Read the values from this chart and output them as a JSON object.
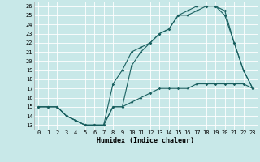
{
  "xlabel": "Humidex (Indice chaleur)",
  "bg_color": "#c8e8e8",
  "grid_color": "#ffffff",
  "line_color": "#1a6060",
  "xlim": [
    -0.5,
    23.5
  ],
  "ylim": [
    12.5,
    26.5
  ],
  "xticks": [
    0,
    1,
    2,
    3,
    4,
    5,
    6,
    7,
    8,
    9,
    10,
    11,
    12,
    13,
    14,
    15,
    16,
    17,
    18,
    19,
    20,
    21,
    22,
    23
  ],
  "yticks": [
    13,
    14,
    15,
    16,
    17,
    18,
    19,
    20,
    21,
    22,
    23,
    24,
    25,
    26
  ],
  "line1_x": [
    0,
    1,
    2,
    3,
    4,
    5,
    6,
    7,
    8,
    9,
    10,
    11,
    12,
    13,
    14,
    15,
    16,
    17,
    18,
    19,
    20,
    21,
    22,
    23
  ],
  "line1_y": [
    15,
    15,
    15,
    14,
    13.5,
    13,
    13,
    13,
    15,
    15,
    15.5,
    16,
    16.5,
    17,
    17,
    17,
    17,
    17.5,
    17.5,
    17.5,
    17.5,
    17.5,
    17.5,
    17
  ],
  "line2_x": [
    0,
    1,
    2,
    3,
    4,
    5,
    6,
    7,
    8,
    9,
    10,
    11,
    12,
    13,
    14,
    15,
    16,
    17,
    18,
    19,
    20,
    21,
    22,
    23
  ],
  "line2_y": [
    15,
    15,
    15,
    14,
    13.5,
    13,
    13,
    13,
    17.5,
    19,
    21,
    21.5,
    22,
    23,
    23.5,
    25,
    25.5,
    26,
    26,
    26,
    25,
    22,
    19,
    17
  ],
  "line3_x": [
    0,
    1,
    2,
    3,
    4,
    5,
    6,
    7,
    8,
    9,
    10,
    11,
    12,
    13,
    14,
    15,
    16,
    17,
    18,
    19,
    20,
    21,
    22,
    23
  ],
  "line3_y": [
    15,
    15,
    15,
    14,
    13.5,
    13,
    13,
    13,
    15,
    15,
    19.5,
    21,
    22,
    23,
    23.5,
    25,
    25,
    25.5,
    26,
    26,
    25.5,
    22,
    19,
    17
  ],
  "xlabel_fontsize": 6.0,
  "tick_fontsize": 5.0,
  "linewidth": 0.8,
  "markersize": 1.8
}
